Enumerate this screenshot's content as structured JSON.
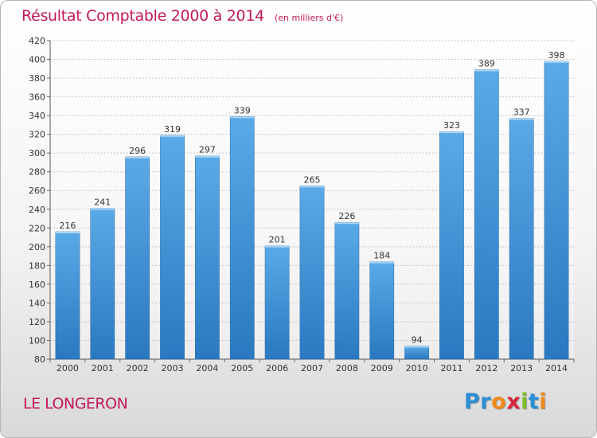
{
  "chart_data": {
    "type": "bar",
    "title": "Résultat Comptable 2000 à 2014",
    "subtitle": "(en milliers d'€)",
    "categories": [
      "2000",
      "2001",
      "2002",
      "2003",
      "2004",
      "2005",
      "2006",
      "2007",
      "2008",
      "2009",
      "2010",
      "2011",
      "2012",
      "2013",
      "2014"
    ],
    "values": [
      216,
      241,
      296,
      319,
      297,
      339,
      201,
      265,
      226,
      184,
      94,
      323,
      389,
      337,
      398
    ],
    "ylim": [
      80,
      420
    ],
    "yticks": [
      80,
      100,
      120,
      140,
      160,
      180,
      200,
      220,
      240,
      260,
      280,
      300,
      320,
      340,
      360,
      380,
      400,
      420
    ],
    "grid": true,
    "bar_color_top": "#5aaae8",
    "bar_color_bottom": "#2a78bf"
  },
  "commune": "LE LONGERON",
  "brand": {
    "letters": [
      "P",
      "r",
      "o",
      "x",
      "i",
      "t",
      "i"
    ],
    "colors": [
      "#2b8fd6",
      "#2b8fd6",
      "#f08a1c",
      "#d7263d",
      "#7bbf2a",
      "#2b8fd6",
      "#f08a1c"
    ]
  },
  "colors": {
    "title": "#c2185b",
    "grid": "#c8c8c8"
  }
}
